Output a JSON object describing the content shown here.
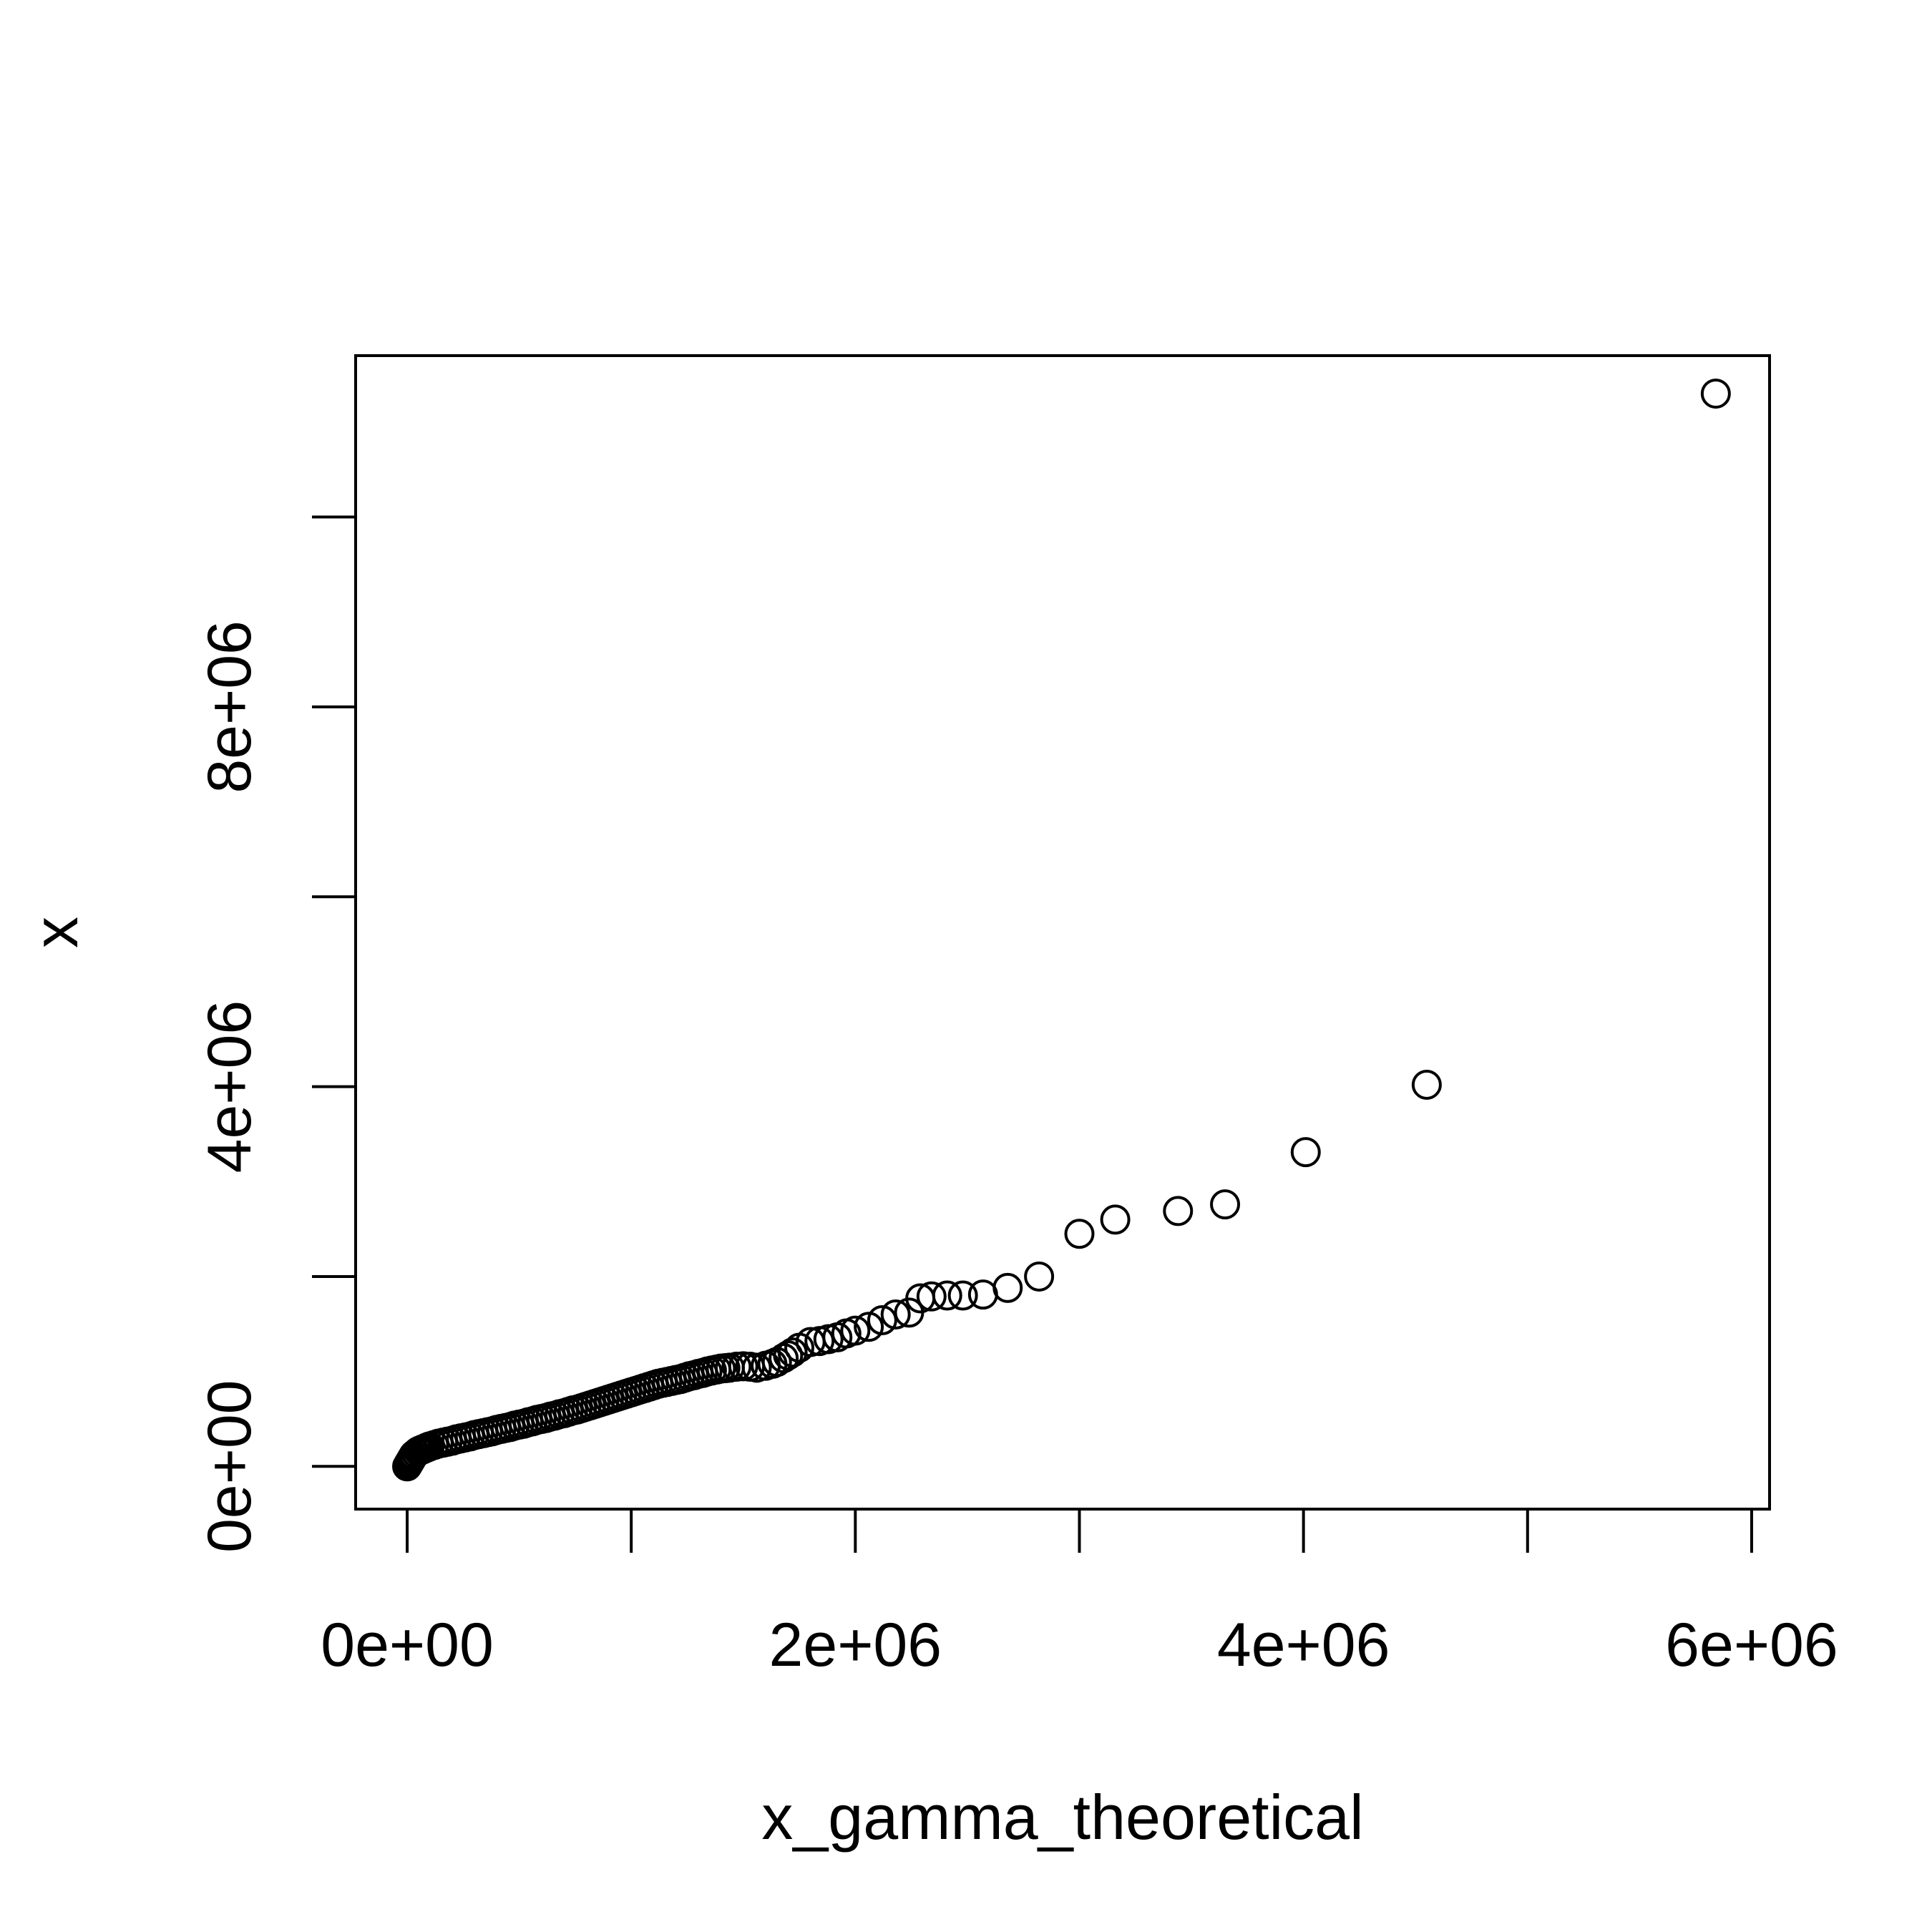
{
  "chart_data": {
    "type": "scatter",
    "title": "",
    "xlabel": "x_gamma_theoretical",
    "ylabel": "x",
    "xlim": [
      -230000,
      6080000
    ],
    "ylim": [
      -450000,
      11700000
    ],
    "x_ticks": [
      {
        "value": 0,
        "label": "0e+00"
      },
      {
        "value": 1000000,
        "label": ""
      },
      {
        "value": 2000000,
        "label": "2e+06"
      },
      {
        "value": 3000000,
        "label": ""
      },
      {
        "value": 4000000,
        "label": "4e+06"
      },
      {
        "value": 5000000,
        "label": ""
      },
      {
        "value": 6000000,
        "label": "6e+06"
      }
    ],
    "y_ticks": [
      {
        "value": 0,
        "label": "0e+00"
      },
      {
        "value": 2000000,
        "label": ""
      },
      {
        "value": 4000000,
        "label": "4e+06"
      },
      {
        "value": 6000000,
        "label": ""
      },
      {
        "value": 8000000,
        "label": "8e+06"
      },
      {
        "value": 10000000,
        "label": ""
      }
    ],
    "grid": false,
    "legend": "none",
    "marker": "open-circle",
    "color": "#000000",
    "points": [
      [
        0,
        0
      ],
      [
        5000,
        20000
      ],
      [
        10000,
        40000
      ],
      [
        15000,
        60000
      ],
      [
        20000,
        80000
      ],
      [
        25000,
        100000
      ],
      [
        30000,
        120000
      ],
      [
        40000,
        140000
      ],
      [
        50000,
        160000
      ],
      [
        60000,
        170000
      ],
      [
        70000,
        180000
      ],
      [
        80000,
        190000
      ],
      [
        90000,
        200000
      ],
      [
        100000,
        210000
      ],
      [
        120000,
        225000
      ],
      [
        140000,
        240000
      ],
      [
        160000,
        250000
      ],
      [
        180000,
        260000
      ],
      [
        200000,
        270000
      ],
      [
        220000,
        285000
      ],
      [
        240000,
        295000
      ],
      [
        260000,
        305000
      ],
      [
        280000,
        315000
      ],
      [
        300000,
        330000
      ],
      [
        320000,
        340000
      ],
      [
        340000,
        350000
      ],
      [
        360000,
        360000
      ],
      [
        380000,
        370000
      ],
      [
        400000,
        385000
      ],
      [
        420000,
        395000
      ],
      [
        440000,
        405000
      ],
      [
        460000,
        415000
      ],
      [
        480000,
        430000
      ],
      [
        500000,
        440000
      ],
      [
        520000,
        450000
      ],
      [
        540000,
        465000
      ],
      [
        560000,
        475000
      ],
      [
        580000,
        490000
      ],
      [
        600000,
        500000
      ],
      [
        620000,
        510000
      ],
      [
        640000,
        525000
      ],
      [
        660000,
        535000
      ],
      [
        680000,
        550000
      ],
      [
        700000,
        560000
      ],
      [
        720000,
        575000
      ],
      [
        740000,
        590000
      ],
      [
        760000,
        600000
      ],
      [
        780000,
        615000
      ],
      [
        800000,
        630000
      ],
      [
        820000,
        645000
      ],
      [
        840000,
        660000
      ],
      [
        860000,
        675000
      ],
      [
        880000,
        690000
      ],
      [
        900000,
        705000
      ],
      [
        920000,
        720000
      ],
      [
        940000,
        735000
      ],
      [
        960000,
        750000
      ],
      [
        980000,
        765000
      ],
      [
        1000000,
        780000
      ],
      [
        1020000,
        795000
      ],
      [
        1040000,
        810000
      ],
      [
        1060000,
        825000
      ],
      [
        1080000,
        840000
      ],
      [
        1100000,
        855000
      ],
      [
        1120000,
        870000
      ],
      [
        1140000,
        880000
      ],
      [
        1160000,
        890000
      ],
      [
        1180000,
        900000
      ],
      [
        1200000,
        910000
      ],
      [
        1220000,
        920000
      ],
      [
        1240000,
        935000
      ],
      [
        1260000,
        950000
      ],
      [
        1280000,
        960000
      ],
      [
        1300000,
        975000
      ],
      [
        1320000,
        985000
      ],
      [
        1340000,
        1000000
      ],
      [
        1360000,
        1010000
      ],
      [
        1380000,
        1020000
      ],
      [
        1400000,
        1030000
      ],
      [
        1420000,
        1035000
      ],
      [
        1440000,
        1040000
      ],
      [
        1470000,
        1050000
      ],
      [
        1500000,
        1055000
      ],
      [
        1530000,
        1050000
      ],
      [
        1560000,
        1040000
      ],
      [
        1600000,
        1060000
      ],
      [
        1630000,
        1080000
      ],
      [
        1650000,
        1100000
      ],
      [
        1680000,
        1140000
      ],
      [
        1700000,
        1170000
      ],
      [
        1720000,
        1200000
      ],
      [
        1750000,
        1250000
      ],
      [
        1800000,
        1310000
      ],
      [
        1840000,
        1320000
      ],
      [
        1880000,
        1340000
      ],
      [
        1920000,
        1360000
      ],
      [
        1960000,
        1400000
      ],
      [
        2000000,
        1430000
      ],
      [
        2060000,
        1470000
      ],
      [
        2120000,
        1540000
      ],
      [
        2180000,
        1600000
      ],
      [
        2240000,
        1620000
      ],
      [
        2290000,
        1770000
      ],
      [
        2340000,
        1790000
      ],
      [
        2410000,
        1800000
      ],
      [
        2480000,
        1800000
      ],
      [
        2570000,
        1810000
      ],
      [
        2680000,
        1880000
      ],
      [
        2820000,
        2000000
      ],
      [
        3000000,
        2450000
      ],
      [
        3160000,
        2600000
      ],
      [
        3440000,
        2690000
      ],
      [
        3650000,
        2760000
      ],
      [
        4010000,
        3310000
      ],
      [
        4550000,
        4020000
      ],
      [
        5840000,
        11300000
      ]
    ]
  }
}
